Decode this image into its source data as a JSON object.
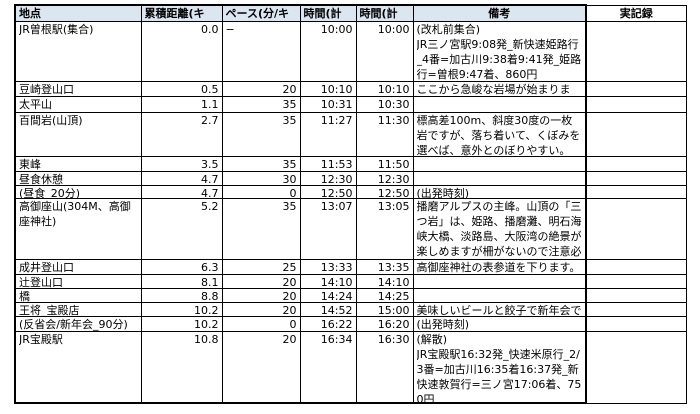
{
  "colors": {
    "header_fill": "#DCE6F1",
    "actual_header_fill": "#FFFFFF",
    "border": "#000000",
    "background": "#FFFFFF"
  },
  "table": {
    "columns": [
      "地点",
      "累積距離(キロ)",
      "ペース(分/キロ)",
      "時間(計算)",
      "時間(計画)",
      "備考",
      "実記録"
    ],
    "rows": [
      {
        "spot": "JR曽根駅(集合)",
        "distance": "0.0",
        "pace": "−",
        "time_calc": "10:00",
        "time_plan": "10:00",
        "remarks": "(改札前集合)\nJR三ノ宮駅9:08発_新快速姫路行_4番=加古川9:38着9:41発_姫路行=曽根9:47着、860円",
        "actual": ""
      },
      {
        "spot": "豆崎登山口",
        "distance": "0.5",
        "pace": "20",
        "time_calc": "10:10",
        "time_plan": "10:10",
        "remarks": "ここから急峻な岩場が始まります。",
        "actual": ""
      },
      {
        "spot": "太平山",
        "distance": "1.1",
        "pace": "35",
        "time_calc": "10:31",
        "time_plan": "10:30",
        "remarks": "",
        "actual": ""
      },
      {
        "spot": "百間岩(山頂)",
        "distance": "2.7",
        "pace": "35",
        "time_calc": "11:27",
        "time_plan": "11:30",
        "remarks": "標高差100m、斜度30度の一枚岩ですが、落ち着いて、くぼみを選べば、意外とのぼりやすい。",
        "actual": ""
      },
      {
        "spot": "東峰",
        "distance": "3.5",
        "pace": "35",
        "time_calc": "11:53",
        "time_plan": "11:50",
        "remarks": "",
        "actual": ""
      },
      {
        "spot": "昼食休憩",
        "distance": "4.7",
        "pace": "30",
        "time_calc": "12:30",
        "time_plan": "12:30",
        "remarks": "",
        "actual": ""
      },
      {
        "spot": "(昼食_20分)",
        "distance": "4.7",
        "pace": "0",
        "time_calc": "12:50",
        "time_plan": "12:50",
        "remarks": "(出発時刻)",
        "actual": ""
      },
      {
        "spot": "高御座山(304M、高御座神社)",
        "distance": "5.2",
        "pace": "35",
        "time_calc": "13:07",
        "time_plan": "13:05",
        "remarks": "播磨アルプスの主峰。山頂の「三つ岩」は、姫路、播磨灘、明石海峡大橋、淡路島、大阪湾の絶景が楽しめますが柵がないので注意必要。",
        "actual": ""
      },
      {
        "spot": "成井登山口",
        "distance": "6.3",
        "pace": "25",
        "time_calc": "13:33",
        "time_plan": "13:35",
        "remarks": "高御座神社の表参道を下ります。",
        "actual": ""
      },
      {
        "spot": "辻登山口",
        "distance": "8.1",
        "pace": "20",
        "time_calc": "14:10",
        "time_plan": "14:10",
        "remarks": "",
        "actual": ""
      },
      {
        "spot": "橋",
        "distance": "8.8",
        "pace": "20",
        "time_calc": "14:24",
        "time_plan": "14:25",
        "remarks": "",
        "actual": ""
      },
      {
        "spot": "王将_宝殿店",
        "distance": "10.2",
        "pace": "20",
        "time_calc": "14:52",
        "time_plan": "15:00",
        "remarks": "美味しいビールと餃子で新年会です。",
        "actual": ""
      },
      {
        "spot": "(反省会/新年会_90分)",
        "distance": "10.2",
        "pace": "0",
        "time_calc": "16:22",
        "time_plan": "16:20",
        "remarks": "(出発時刻)",
        "actual": ""
      },
      {
        "spot": "JR宝殿駅",
        "distance": "10.8",
        "pace": "20",
        "time_calc": "16:34",
        "time_plan": "16:30",
        "remarks": "(解散)\nJR宝殿駅16:32発_快速米原行_2/3番=加古川16:35着16:37発_新快速敦賀行=三ノ宮17:06着、750円",
        "actual": ""
      }
    ]
  }
}
